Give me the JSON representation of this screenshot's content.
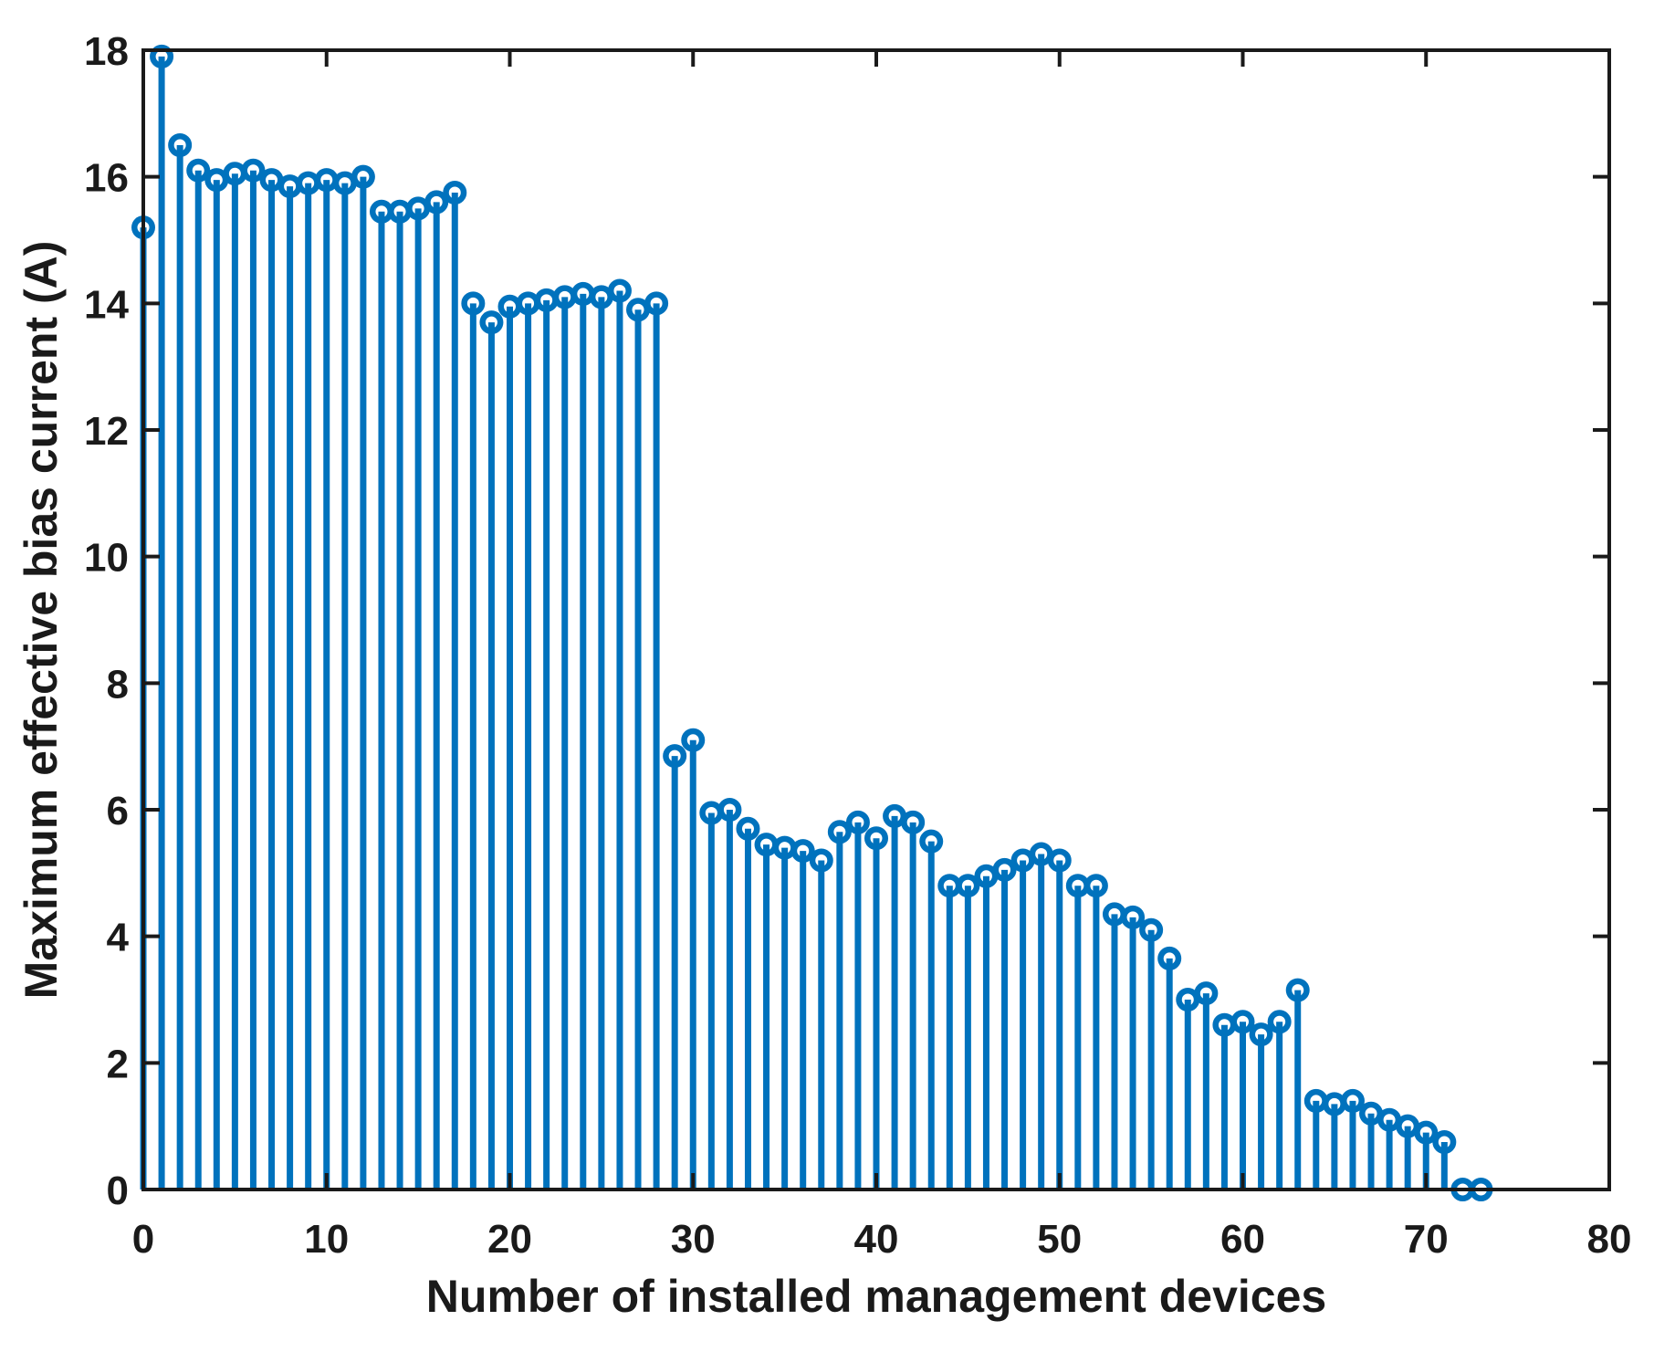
{
  "figure": {
    "background": "#ffffff"
  },
  "chart_data": {
    "type": "stem",
    "title": "",
    "xlabel": "Number of installed management devices",
    "ylabel": "Maximum effective bias current (A)",
    "marker": "open-circle",
    "grid": false,
    "legend": null,
    "xlim": [
      0,
      80
    ],
    "ylim": [
      0,
      18
    ],
    "xticks": [
      0,
      10,
      20,
      30,
      40,
      50,
      60,
      70,
      80
    ],
    "yticks": [
      0,
      2,
      4,
      6,
      8,
      10,
      12,
      14,
      16,
      18
    ],
    "stem_color": "#0072BD",
    "axis_color": "#1a1a1a",
    "x": [
      0,
      1,
      2,
      3,
      4,
      5,
      6,
      7,
      8,
      9,
      10,
      11,
      12,
      13,
      14,
      15,
      16,
      17,
      18,
      19,
      20,
      21,
      22,
      23,
      24,
      25,
      26,
      27,
      28,
      29,
      30,
      31,
      32,
      33,
      34,
      35,
      36,
      37,
      38,
      39,
      40,
      41,
      42,
      43,
      44,
      45,
      46,
      47,
      48,
      49,
      50,
      51,
      52,
      53,
      54,
      55,
      56,
      57,
      58,
      59,
      60,
      61,
      62,
      63,
      64,
      65,
      66,
      67,
      68,
      69,
      70,
      71,
      72,
      73
    ],
    "values": [
      15.2,
      17.9,
      16.5,
      16.1,
      15.95,
      16.05,
      16.1,
      15.95,
      15.85,
      15.9,
      15.95,
      15.9,
      16.0,
      15.45,
      15.45,
      15.5,
      15.6,
      15.75,
      14.0,
      13.7,
      13.95,
      14.0,
      14.05,
      14.1,
      14.15,
      14.1,
      14.2,
      13.9,
      14.0,
      6.85,
      7.1,
      5.95,
      6.0,
      5.7,
      5.45,
      5.4,
      5.35,
      5.2,
      5.65,
      5.8,
      5.55,
      5.9,
      5.8,
      5.5,
      4.8,
      4.8,
      4.95,
      5.05,
      5.2,
      5.3,
      5.2,
      4.8,
      4.8,
      4.35,
      4.3,
      4.1,
      3.65,
      3.0,
      3.1,
      2.6,
      2.65,
      2.45,
      2.65,
      3.15,
      1.4,
      1.35,
      1.4,
      1.2,
      1.1,
      1.0,
      0.9,
      0.75,
      0,
      0
    ]
  }
}
